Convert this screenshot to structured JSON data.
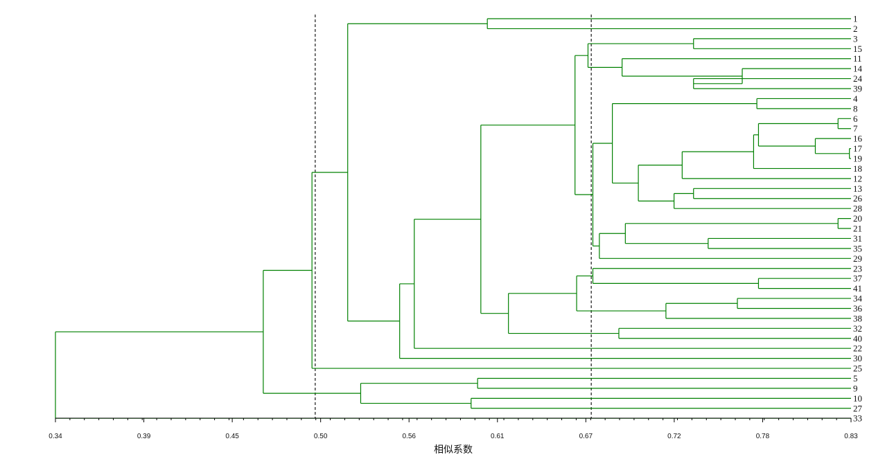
{
  "chart_data": {
    "type": "dendrogram",
    "orientation": "horizontal",
    "xlabel": "相似系数",
    "xlim": [
      0.34,
      0.83
    ],
    "xticks": [
      "0.34",
      "0.39",
      "0.45",
      "0.50",
      "0.56",
      "0.61",
      "0.67",
      "0.72",
      "0.78",
      "0.83"
    ],
    "cutoff_lines": [
      0.5,
      0.67
    ],
    "leaf_order": [
      "1",
      "2",
      "3",
      "15",
      "11",
      "14",
      "24",
      "39",
      "4",
      "8",
      "6",
      "7",
      "16",
      "17",
      "19",
      "18",
      "12",
      "13",
      "26",
      "28",
      "20",
      "21",
      "31",
      "35",
      "29",
      "23",
      "37",
      "41",
      "34",
      "36",
      "38",
      "32",
      "40",
      "22",
      "30",
      "25",
      "5",
      "9",
      "10",
      "27",
      "33"
    ],
    "merges": [
      {
        "id": "A",
        "children": [
          "1",
          "2"
        ],
        "similarity": 0.606
      },
      {
        "id": "B",
        "children": [
          "3",
          "15"
        ],
        "similarity": 0.733
      },
      {
        "id": "C",
        "children": [
          "24",
          "39"
        ],
        "similarity": 0.733
      },
      {
        "id": "D",
        "children": [
          "14",
          "C"
        ],
        "similarity": 0.763
      },
      {
        "id": "E",
        "children": [
          "11",
          "D"
        ],
        "similarity": 0.689
      },
      {
        "id": "F",
        "children": [
          "B",
          "E"
        ],
        "similarity": 0.668
      },
      {
        "id": "G",
        "children": [
          "4",
          "8"
        ],
        "similarity": 0.772
      },
      {
        "id": "H",
        "children": [
          "6",
          "7"
        ],
        "similarity": 0.822
      },
      {
        "id": "I",
        "children": [
          "17",
          "19"
        ],
        "similarity": 0.829
      },
      {
        "id": "J",
        "children": [
          "16",
          "I"
        ],
        "similarity": 0.808
      },
      {
        "id": "K",
        "children": [
          "H",
          "J"
        ],
        "similarity": 0.773
      },
      {
        "id": "L",
        "children": [
          "K",
          "18"
        ],
        "similarity": 0.77
      },
      {
        "id": "M",
        "children": [
          "L",
          "12"
        ],
        "similarity": 0.726
      },
      {
        "id": "N",
        "children": [
          "13",
          "26"
        ],
        "similarity": 0.733
      },
      {
        "id": "O",
        "children": [
          "N",
          "28"
        ],
        "similarity": 0.721
      },
      {
        "id": "P",
        "children": [
          "M",
          "O"
        ],
        "similarity": 0.699
      },
      {
        "id": "Q",
        "children": [
          "G",
          "P"
        ],
        "similarity": 0.683
      },
      {
        "id": "R",
        "children": [
          "20",
          "21"
        ],
        "similarity": 0.822
      },
      {
        "id": "S",
        "children": [
          "31",
          "35"
        ],
        "similarity": 0.742
      },
      {
        "id": "T",
        "children": [
          "R",
          "S"
        ],
        "similarity": 0.691
      },
      {
        "id": "U",
        "children": [
          "T",
          "29"
        ],
        "similarity": 0.675
      },
      {
        "id": "V",
        "children": [
          "Q",
          "U"
        ],
        "similarity": 0.671
      },
      {
        "id": "W",
        "children": [
          "F",
          "V"
        ],
        "similarity": 0.66
      },
      {
        "id": "X",
        "children": [
          "37",
          "41"
        ],
        "similarity": 0.773
      },
      {
        "id": "Y",
        "children": [
          "23",
          "X"
        ],
        "similarity": 0.671
      },
      {
        "id": "Z",
        "children": [
          "34",
          "36"
        ],
        "similarity": 0.76
      },
      {
        "id": "AA",
        "children": [
          "Z",
          "38"
        ],
        "similarity": 0.716
      },
      {
        "id": "AB",
        "children": [
          "Y",
          "AA"
        ],
        "similarity": 0.661
      },
      {
        "id": "AC",
        "children": [
          "32",
          "40"
        ],
        "similarity": 0.687
      },
      {
        "id": "AD",
        "children": [
          "AB",
          "AC"
        ],
        "similarity": 0.619
      },
      {
        "id": "AE",
        "children": [
          "W",
          "AD"
        ],
        "similarity": 0.602
      },
      {
        "id": "AF",
        "children": [
          "AE",
          "22"
        ],
        "similarity": 0.561
      },
      {
        "id": "AG",
        "children": [
          "AF",
          "30"
        ],
        "similarity": 0.552
      },
      {
        "id": "AH",
        "children": [
          "A",
          "AG"
        ],
        "similarity": 0.52
      },
      {
        "id": "AI",
        "children": [
          "AH",
          "25"
        ],
        "similarity": 0.498
      },
      {
        "id": "AJ",
        "children": [
          "5",
          "9"
        ],
        "similarity": 0.6
      },
      {
        "id": "AK",
        "children": [
          "10",
          "27"
        ],
        "similarity": 0.596
      },
      {
        "id": "AL",
        "children": [
          "AJ",
          "AK"
        ],
        "similarity": 0.528
      },
      {
        "id": "AM",
        "children": [
          "AI",
          "AL"
        ],
        "similarity": 0.468
      },
      {
        "id": "AN",
        "children": [
          "AM",
          "33"
        ],
        "similarity": 0.34
      }
    ],
    "colors": {
      "tree": "#008000",
      "cutoff": "#000000",
      "axis": "#000000",
      "text": "#111111"
    }
  }
}
